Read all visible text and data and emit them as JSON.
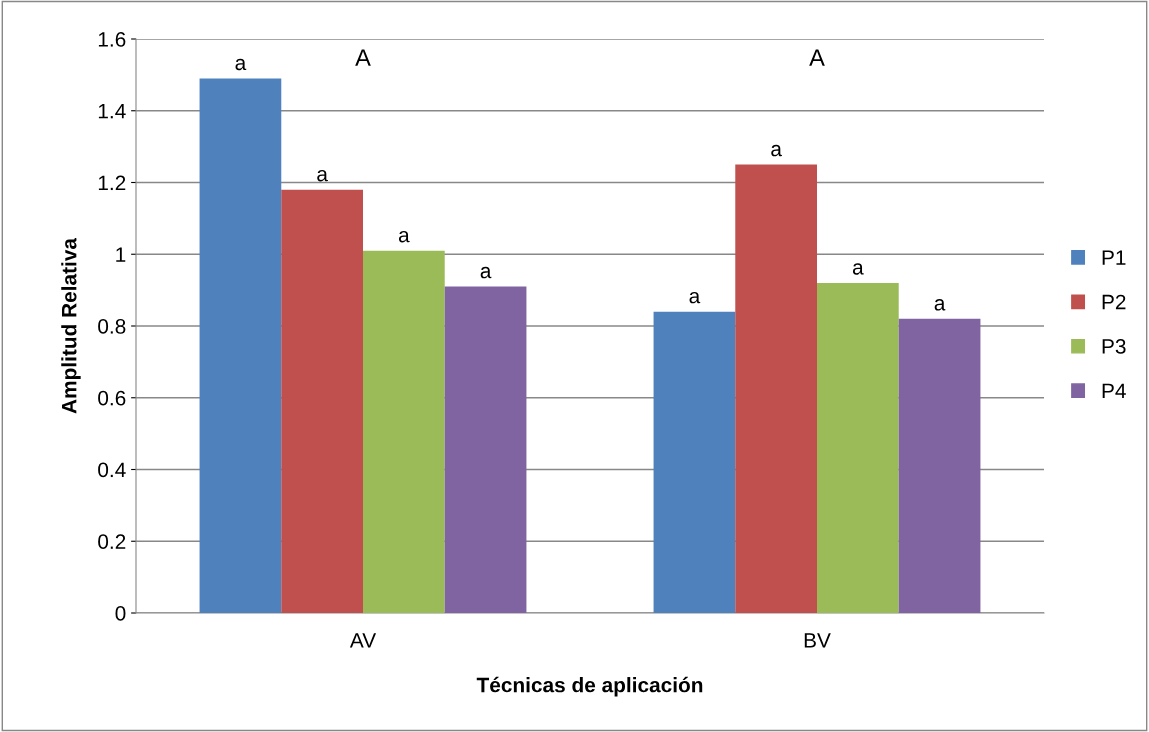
{
  "chart_data": {
    "type": "bar",
    "xlabel": "Técnicas de aplicación",
    "ylabel": "Amplitud Relativa",
    "categories": [
      "AV",
      "BV"
    ],
    "series": [
      {
        "name": "P1",
        "color": "#4f81bd",
        "values": [
          1.49,
          0.84
        ],
        "value_labels": [
          "a",
          "a"
        ]
      },
      {
        "name": "P2",
        "color": "#c0504d",
        "values": [
          1.18,
          1.25
        ],
        "value_labels": [
          "a",
          "a"
        ]
      },
      {
        "name": "P3",
        "color": "#9bbb59",
        "values": [
          1.01,
          0.92
        ],
        "value_labels": [
          "a",
          "a"
        ]
      },
      {
        "name": "P4",
        "color": "#8064a2",
        "values": [
          0.91,
          0.82
        ],
        "value_labels": [
          "a",
          "a"
        ]
      }
    ],
    "annotations": [
      "A",
      "A"
    ],
    "ylim": [
      0,
      1.6
    ],
    "yticks": [
      0,
      0.2,
      0.4,
      0.6,
      0.8,
      1,
      1.2,
      1.4,
      1.6
    ],
    "grid": "y",
    "legend": "right"
  }
}
